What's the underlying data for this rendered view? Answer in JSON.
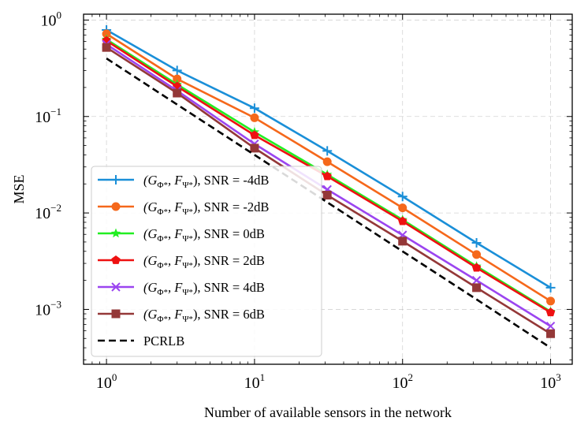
{
  "chart_data": {
    "type": "line",
    "title": "",
    "xlabel": "Number of available sensors in the network",
    "ylabel": "MSE",
    "xscale": "log",
    "yscale": "log",
    "xlim": [
      0.7,
      1400
    ],
    "ylim": [
      0.00027,
      1.15
    ],
    "grid": true,
    "legend_position": "lower-left",
    "x_ticks": [
      {
        "value": 1,
        "base": "10",
        "exp": "0"
      },
      {
        "value": 10,
        "base": "10",
        "exp": "1"
      },
      {
        "value": 100,
        "base": "10",
        "exp": "2"
      },
      {
        "value": 1000,
        "base": "10",
        "exp": "3"
      }
    ],
    "y_ticks": [
      {
        "value": 0.001,
        "base": "10",
        "exp": "−3"
      },
      {
        "value": 0.01,
        "base": "10",
        "exp": "−2"
      },
      {
        "value": 0.1,
        "base": "10",
        "exp": "−1"
      },
      {
        "value": 1,
        "base": "10",
        "exp": "0"
      }
    ],
    "x": [
      1,
      3,
      10,
      31,
      100,
      316,
      1000
    ],
    "series": [
      {
        "name": "SNR = -4dB",
        "legend_prefix": "(G",
        "sub1": "Φ*",
        "mid": ", F",
        "sub2": "Ψ*",
        "legend_suffix": "), SNR = -4dB",
        "color": "#1a8fd8",
        "marker": "plus",
        "values": [
          0.79,
          0.3,
          0.122,
          0.044,
          0.0148,
          0.0049,
          0.00168
        ]
      },
      {
        "name": "SNR = -2dB",
        "legend_prefix": "(G",
        "sub1": "Φ*",
        "mid": ", F",
        "sub2": "Ψ*",
        "legend_suffix": "), SNR = -2dB",
        "color": "#f5681b",
        "marker": "circle",
        "values": [
          0.72,
          0.245,
          0.097,
          0.034,
          0.0113,
          0.0037,
          0.00122
        ]
      },
      {
        "name": "SNR = 0dB",
        "legend_prefix": "(G",
        "sub1": "Φ*",
        "mid": ", F",
        "sub2": "Ψ*",
        "legend_suffix": "), SNR = 0dB",
        "color": "#22ee22",
        "marker": "star",
        "values": [
          0.63,
          0.215,
          0.069,
          0.025,
          0.0085,
          0.0028,
          0.00095
        ]
      },
      {
        "name": "SNR = 2dB",
        "legend_prefix": "(G",
        "sub1": "Φ*",
        "mid": ", F",
        "sub2": "Ψ*",
        "legend_suffix": "), SNR = 2dB",
        "color": "#ee1111",
        "marker": "pentagon",
        "values": [
          0.61,
          0.205,
          0.064,
          0.024,
          0.0082,
          0.0027,
          0.00093
        ]
      },
      {
        "name": "SNR = 4dB",
        "legend_prefix": "(G",
        "sub1": "Φ*",
        "mid": ", F",
        "sub2": "Ψ*",
        "legend_suffix": "), SNR = 4dB",
        "color": "#9b45f0",
        "marker": "x",
        "values": [
          0.56,
          0.185,
          0.052,
          0.0175,
          0.0059,
          0.002,
          0.00067
        ]
      },
      {
        "name": "SNR = 6dB",
        "legend_prefix": "(G",
        "sub1": "Φ*",
        "mid": ", F",
        "sub2": "Ψ*",
        "legend_suffix": "), SNR = 6dB",
        "color": "#943838",
        "marker": "square",
        "values": [
          0.52,
          0.175,
          0.047,
          0.0153,
          0.0051,
          0.00168,
          0.00056
        ]
      },
      {
        "name": "PCRLB",
        "legend_prefix": "",
        "sub1": "",
        "mid": "",
        "sub2": "",
        "legend_suffix": "PCRLB",
        "color": "#000000",
        "marker": "none",
        "dashed": true,
        "values": [
          0.4,
          0.133,
          0.04,
          0.0129,
          0.004,
          0.00127,
          0.0004
        ]
      }
    ]
  }
}
